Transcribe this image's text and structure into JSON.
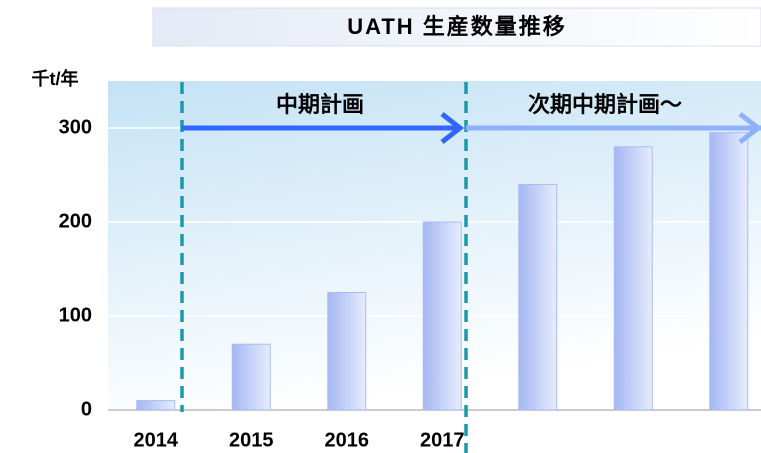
{
  "chart_data": {
    "type": "bar",
    "title": "UATH 生産数量推移",
    "y_label": "千t/年",
    "categories": [
      "2014",
      "2015",
      "2016",
      "2017",
      null,
      null,
      null
    ],
    "values": [
      10,
      70,
      125,
      200,
      240,
      280,
      295
    ],
    "color": "#a9bbf3",
    "ylim": [
      0,
      350
    ],
    "yticks": [
      0,
      100,
      200,
      300
    ],
    "grid": true,
    "annotations": [
      "中期計画",
      "次期中期計画～"
    ]
  }
}
